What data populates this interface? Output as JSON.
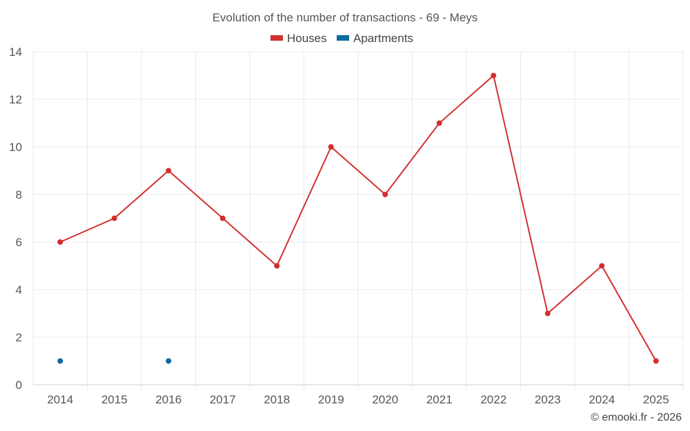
{
  "chart_data": {
    "type": "line",
    "title": "Evolution of the number of transactions - 69 - Meys",
    "xlabel": "",
    "ylabel": "",
    "categories": [
      "2014",
      "2015",
      "2016",
      "2017",
      "2018",
      "2019",
      "2020",
      "2021",
      "2022",
      "2023",
      "2024",
      "2025"
    ],
    "ylim": [
      0,
      14
    ],
    "yticks": [
      0,
      2,
      4,
      6,
      8,
      10,
      12,
      14
    ],
    "grid": true,
    "legend_position": "top-center",
    "series": [
      {
        "name": "Houses",
        "color": "#d32f2f",
        "values": [
          6,
          7,
          9,
          7,
          5,
          10,
          8,
          11,
          13,
          3,
          5,
          1
        ]
      },
      {
        "name": "Apartments",
        "color": "#0a6aa1",
        "values": [
          1,
          null,
          1,
          null,
          null,
          null,
          null,
          null,
          null,
          null,
          null,
          null
        ]
      }
    ]
  },
  "credit": "© emooki.fr - 2026"
}
